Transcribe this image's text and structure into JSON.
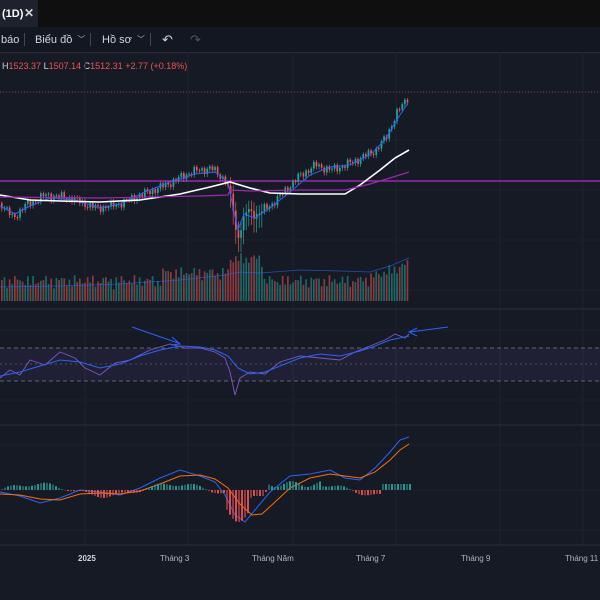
{
  "tab": {
    "title": "(1D)",
    "close_icon": "close-icon"
  },
  "toolbar": {
    "alert_label": "báo",
    "chart_label": "Biểu đồ",
    "profile_label": "Hồ sơ",
    "undo_icon": "undo-icon",
    "redo_icon": "redo-icon"
  },
  "ohlc": {
    "h_key": "H",
    "h_val": "1523.37",
    "l_key": "L",
    "l_val": "1507.14",
    "c_key": "C",
    "c_val": "1512.31",
    "change": "+2.77 (+0.18%)"
  },
  "x_axis": {
    "labels": [
      "2025",
      "Tháng 3",
      "Tháng Năm",
      "Tháng 7",
      "Tháng 9",
      "Tháng 11"
    ]
  },
  "colors": {
    "up": "#26a69a",
    "down": "#ef5350",
    "sma_long": "#ffffff",
    "purple": "#9c27b0",
    "rsi_line": "#7e57c2",
    "rsi_ma": "#2962ff",
    "macd": "#2962ff",
    "signal": "#ff6d00",
    "annotation": "#2962ff"
  }
}
